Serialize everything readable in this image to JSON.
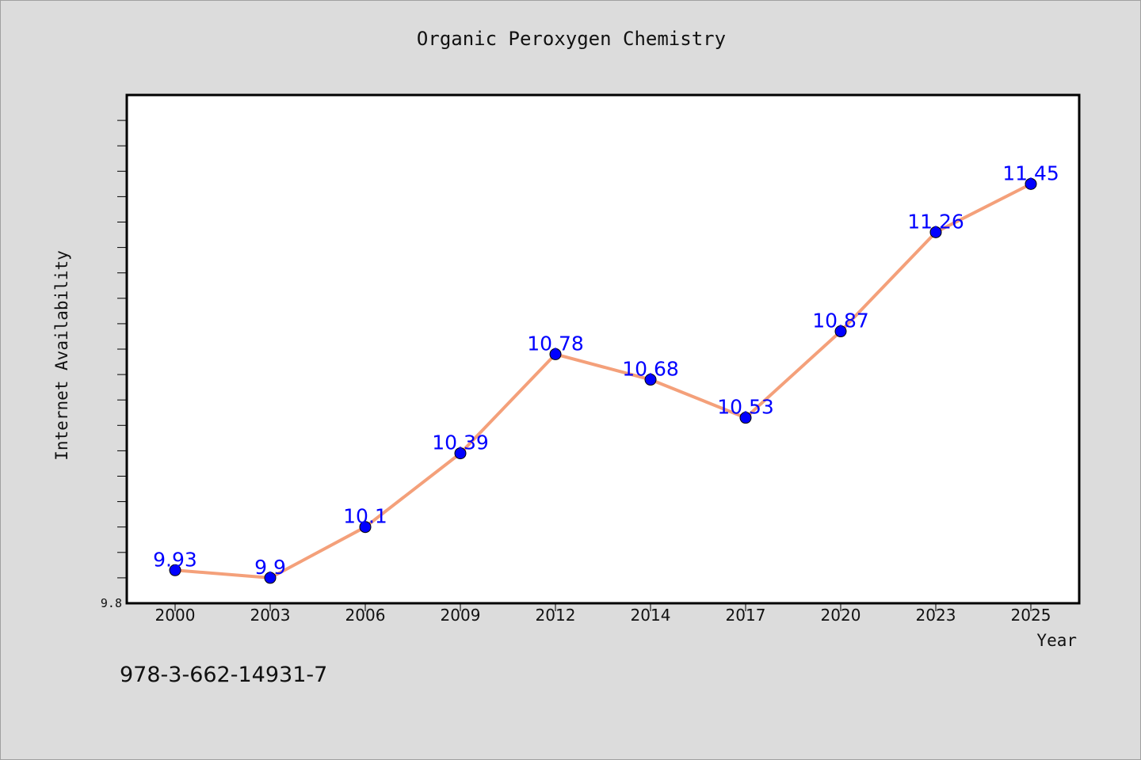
{
  "chart_data": {
    "type": "line",
    "title": "Organic Peroxygen Chemistry",
    "xlabel": "Year",
    "ylabel": "Internet Availability",
    "categories": [
      "2000",
      "2003",
      "2006",
      "2009",
      "2012",
      "2014",
      "2017",
      "2020",
      "2023",
      "2025"
    ],
    "series": [
      {
        "values": [
          9.93,
          9.9,
          10.1,
          10.39,
          10.78,
          10.68,
          10.53,
          10.87,
          11.26,
          11.45
        ],
        "labels": [
          "9.93",
          "9.9",
          "10.1",
          "10.39",
          "10.78",
          "10.68",
          "10.53",
          "10.87",
          "11.26",
          "11.45"
        ],
        "line_color": "#f4a07a",
        "marker_color": "#0000ff"
      }
    ],
    "ylim": [
      9.8,
      11.8
    ],
    "ytick_labels": [
      "9.8"
    ],
    "grid": false,
    "legend": "none"
  },
  "footer": {
    "isbn": "978-3-662-14931-7"
  }
}
